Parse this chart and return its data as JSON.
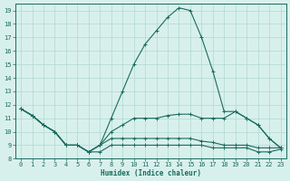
{
  "xlabel": "Humidex (Indice chaleur)",
  "x": [
    0,
    1,
    2,
    3,
    4,
    5,
    6,
    7,
    8,
    9,
    10,
    11,
    12,
    13,
    14,
    15,
    16,
    17,
    18,
    19,
    20,
    21,
    22,
    23
  ],
  "line1": [
    11.7,
    11.2,
    10.5,
    10.0,
    9.0,
    9.0,
    8.5,
    9.0,
    11.0,
    13.0,
    15.0,
    16.5,
    17.5,
    18.5,
    19.2,
    19.0,
    17.0,
    14.5,
    11.5,
    11.5,
    11.0,
    10.5,
    9.5,
    8.8
  ],
  "line2": [
    11.7,
    11.2,
    10.5,
    10.0,
    9.0,
    9.0,
    8.5,
    9.0,
    10.0,
    10.5,
    11.0,
    11.0,
    11.0,
    11.2,
    11.3,
    11.3,
    11.0,
    11.0,
    11.0,
    11.5,
    11.0,
    10.5,
    9.5,
    8.8
  ],
  "line3": [
    11.7,
    11.2,
    10.5,
    10.0,
    9.0,
    9.0,
    8.5,
    9.0,
    9.5,
    9.5,
    9.5,
    9.5,
    9.5,
    9.5,
    9.5,
    9.5,
    9.3,
    9.2,
    9.0,
    9.0,
    9.0,
    8.8,
    8.8,
    8.8
  ],
  "line4": [
    11.7,
    11.2,
    10.5,
    10.0,
    9.0,
    9.0,
    8.5,
    8.5,
    9.0,
    9.0,
    9.0,
    9.0,
    9.0,
    9.0,
    9.0,
    9.0,
    9.0,
    8.8,
    8.8,
    8.8,
    8.8,
    8.5,
    8.5,
    8.7
  ],
  "line_color": "#1a6b5e",
  "bg_color": "#d8f0ec",
  "grid_color": "#b0d8d0",
  "ylim": [
    8,
    19.5
  ],
  "yticks": [
    8,
    9,
    10,
    11,
    12,
    13,
    14,
    15,
    16,
    17,
    18,
    19
  ],
  "xticks": [
    0,
    1,
    2,
    3,
    4,
    5,
    6,
    7,
    8,
    9,
    10,
    11,
    12,
    13,
    14,
    15,
    16,
    17,
    18,
    19,
    20,
    21,
    22,
    23
  ],
  "xlabel_fontsize": 5.5,
  "tick_fontsize": 5.0,
  "lw": 0.8,
  "marker_size": 3.0
}
